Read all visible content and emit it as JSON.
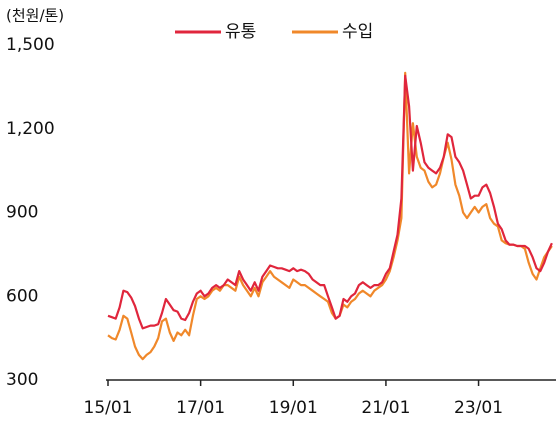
{
  "chart_data": {
    "type": "line",
    "y_label": "(천원/톤)",
    "categories": [
      "15/01",
      null,
      null,
      null,
      null,
      null,
      null,
      null,
      null,
      null,
      null,
      null,
      null,
      null,
      null,
      null,
      null,
      null,
      null,
      null,
      null,
      null,
      null,
      null,
      "17/01",
      null,
      null,
      null,
      null,
      null,
      null,
      null,
      null,
      null,
      null,
      null,
      null,
      null,
      null,
      null,
      null,
      null,
      null,
      null,
      null,
      null,
      null,
      null,
      "19/01",
      null,
      null,
      null,
      null,
      null,
      null,
      null,
      null,
      null,
      null,
      null,
      null,
      null,
      null,
      null,
      null,
      null,
      null,
      null,
      null,
      null,
      null,
      null,
      "21/01",
      null,
      null,
      null,
      null,
      null,
      null,
      null,
      null,
      null,
      null,
      null,
      null,
      null,
      null,
      null,
      null,
      null,
      null,
      null,
      null,
      null,
      null,
      null,
      "23/01",
      null,
      null,
      null,
      null,
      null,
      null,
      null,
      null,
      null,
      null,
      null,
      null,
      null,
      null,
      null,
      null,
      null,
      null,
      null
    ],
    "series": [
      {
        "name": "유통",
        "color": "#e0263c",
        "values": [
          530,
          525,
          520,
          560,
          620,
          615,
          595,
          565,
          520,
          485,
          490,
          495,
          495,
          500,
          540,
          590,
          570,
          550,
          545,
          520,
          515,
          540,
          580,
          610,
          620,
          600,
          610,
          630,
          640,
          630,
          640,
          660,
          650,
          640,
          690,
          660,
          640,
          620,
          650,
          620,
          670,
          690,
          710,
          705,
          700,
          700,
          695,
          690,
          700,
          690,
          695,
          690,
          680,
          660,
          650,
          640,
          640,
          600,
          560,
          520,
          530,
          590,
          580,
          600,
          610,
          640,
          650,
          640,
          630,
          640,
          640,
          650,
          680,
          700,
          760,
          820,
          950,
          1390,
          1280,
          1050,
          1210,
          1150,
          1080,
          1060,
          1050,
          1040,
          1060,
          1100,
          1180,
          1170,
          1100,
          1080,
          1050,
          1000,
          950,
          960,
          960,
          990,
          1000,
          970,
          920,
          860,
          840,
          800,
          785,
          785,
          780,
          780,
          780,
          770,
          740,
          700,
          690,
          720,
          760,
          790
        ]
      },
      {
        "name": "수입",
        "color": "#f0882a",
        "values": [
          460,
          450,
          445,
          480,
          530,
          520,
          470,
          420,
          390,
          375,
          390,
          400,
          420,
          450,
          510,
          520,
          470,
          440,
          470,
          460,
          480,
          460,
          530,
          590,
          600,
          590,
          600,
          620,
          630,
          620,
          640,
          640,
          630,
          620,
          670,
          640,
          620,
          600,
          630,
          600,
          650,
          670,
          690,
          670,
          660,
          650,
          640,
          630,
          660,
          650,
          640,
          640,
          630,
          620,
          610,
          600,
          590,
          580,
          540,
          520,
          530,
          570,
          560,
          580,
          590,
          610,
          620,
          610,
          600,
          620,
          630,
          640,
          660,
          690,
          740,
          800,
          880,
          1400,
          1040,
          1220,
          1100,
          1060,
          1050,
          1010,
          990,
          1000,
          1040,
          1100,
          1150,
          1090,
          1000,
          960,
          900,
          880,
          900,
          920,
          900,
          920,
          930,
          880,
          860,
          850,
          800,
          790,
          785,
          785,
          780,
          780,
          770,
          720,
          680,
          660,
          700,
          740,
          760,
          780
        ]
      }
    ],
    "ylim": [
      300,
      1500
    ],
    "yticks": [
      300,
      600,
      900,
      {
        "value": 1200,
        "label": "1,200"
      },
      {
        "value": 1500,
        "label": "1,500"
      }
    ],
    "grid": false
  }
}
